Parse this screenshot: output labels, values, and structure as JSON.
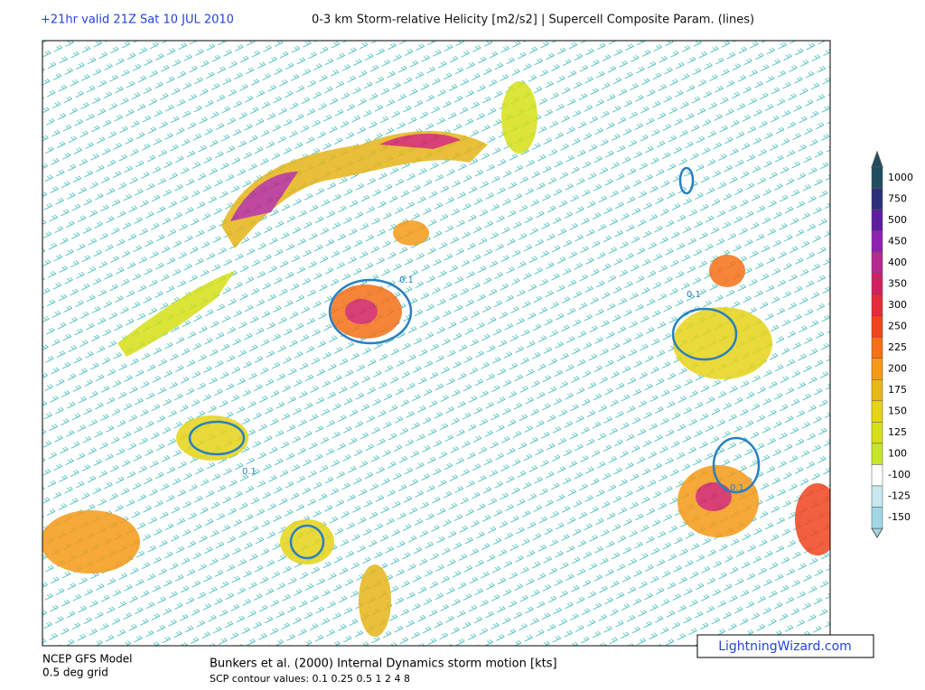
{
  "header": {
    "forecast": "+21hr valid 21Z Sat 10 JUL 2010",
    "title": "0-3 km Storm-relative Helicity [m2/s2] | Supercell Composite Param. (lines)"
  },
  "colorbar": {
    "items": [
      {
        "value": 1000,
        "color": "#1f4e5f"
      },
      {
        "value": 750,
        "color": "#2b2f7a"
      },
      {
        "value": 500,
        "color": "#5c1e9e"
      },
      {
        "value": 450,
        "color": "#8e22b0"
      },
      {
        "value": 400,
        "color": "#b42a8e"
      },
      {
        "value": 350,
        "color": "#d2205e"
      },
      {
        "value": 300,
        "color": "#e62a3a"
      },
      {
        "value": 250,
        "color": "#f0441e"
      },
      {
        "value": 225,
        "color": "#f57018"
      },
      {
        "value": 200,
        "color": "#f59a16"
      },
      {
        "value": 175,
        "color": "#e8b816"
      },
      {
        "value": 150,
        "color": "#e6d418"
      },
      {
        "value": 125,
        "color": "#d6e018"
      },
      {
        "value": 100,
        "color": "#c8e628"
      },
      {
        "value": -100,
        "color": "#ffffff"
      },
      {
        "value": -125,
        "color": "#c6e8ee"
      },
      {
        "value": -150,
        "color": "#a2d6e4"
      }
    ]
  },
  "map_labels": [
    "0.1",
    "0.1",
    "0.1",
    "0.1"
  ],
  "footer": {
    "model": "NCEP GFS Model",
    "grid": "0.5 deg grid",
    "motion": "Bunkers et al. (2000) Internal Dynamics storm motion [kts]",
    "scp": "SCP contour values: 0.1 0.25 0.5 1 2 4 8",
    "credit": "LightningWizard.com"
  }
}
